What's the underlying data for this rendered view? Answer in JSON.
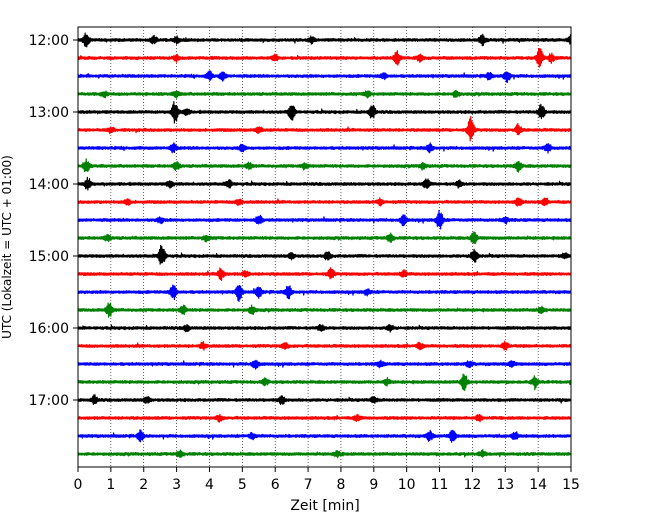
{
  "chart_data": {
    "type": "line",
    "title": "",
    "xlabel": "Zeit  [min]",
    "ylabel": "UTC (Lokalzeit = UTC + 01:00)",
    "xlim": [
      0,
      15
    ],
    "x_ticks": [
      "0",
      "1",
      "2",
      "3",
      "4",
      "5",
      "6",
      "7",
      "8",
      "9",
      "10",
      "11",
      "12",
      "13",
      "14",
      "15"
    ],
    "y_tick_labels": [
      "12:00",
      "13:00",
      "14:00",
      "15:00",
      "16:00",
      "17:00"
    ],
    "grid": "vertical dotted",
    "trace_colors": [
      "#000000",
      "#ff0000",
      "#0000ff",
      "#008000"
    ],
    "traces": [
      {
        "start": "12:00",
        "bursts": [
          [
            0.25,
            7
          ],
          [
            2.3,
            4
          ],
          [
            3.0,
            3
          ],
          [
            7.1,
            3
          ],
          [
            12.3,
            5
          ],
          [
            15.0,
            4
          ]
        ]
      },
      {
        "start": "12:15",
        "bursts": [
          [
            3.0,
            3
          ],
          [
            6.0,
            3
          ],
          [
            9.7,
            7
          ],
          [
            10.4,
            3
          ],
          [
            14.05,
            10
          ],
          [
            14.4,
            4
          ]
        ]
      },
      {
        "start": "12:30",
        "bursts": [
          [
            4.0,
            4
          ],
          [
            4.4,
            4
          ],
          [
            9.3,
            3
          ],
          [
            13.05,
            6
          ],
          [
            12.5,
            3
          ]
        ]
      },
      {
        "start": "12:45",
        "bursts": [
          [
            0.8,
            3
          ],
          [
            3.0,
            3
          ],
          [
            8.8,
            3
          ],
          [
            11.5,
            3
          ]
        ]
      },
      {
        "start": "13:00",
        "bursts": [
          [
            2.95,
            11
          ],
          [
            6.5,
            9
          ],
          [
            8.95,
            7
          ],
          [
            14.1,
            8
          ],
          [
            3.3,
            3
          ]
        ]
      },
      {
        "start": "13:15",
        "bursts": [
          [
            1.0,
            3
          ],
          [
            5.5,
            3
          ],
          [
            11.95,
            12
          ],
          [
            13.4,
            5
          ]
        ]
      },
      {
        "start": "13:30",
        "bursts": [
          [
            2.9,
            4
          ],
          [
            5.0,
            3
          ],
          [
            10.7,
            4
          ],
          [
            14.3,
            4
          ]
        ]
      },
      {
        "start": "13:45",
        "bursts": [
          [
            0.25,
            6
          ],
          [
            3.0,
            4
          ],
          [
            5.2,
            3
          ],
          [
            6.9,
            3
          ],
          [
            10.5,
            3
          ],
          [
            13.4,
            5
          ]
        ]
      },
      {
        "start": "14:00",
        "bursts": [
          [
            0.3,
            6
          ],
          [
            2.8,
            3
          ],
          [
            4.6,
            4
          ],
          [
            10.6,
            5
          ],
          [
            11.6,
            3
          ]
        ]
      },
      {
        "start": "14:15",
        "bursts": [
          [
            1.5,
            3
          ],
          [
            4.9,
            3
          ],
          [
            9.2,
            3
          ],
          [
            13.4,
            4
          ],
          [
            14.2,
            3
          ]
        ]
      },
      {
        "start": "14:30",
        "bursts": [
          [
            2.5,
            3
          ],
          [
            5.5,
            5
          ],
          [
            9.9,
            5
          ],
          [
            11.0,
            10
          ],
          [
            13.0,
            3
          ]
        ]
      },
      {
        "start": "14:45",
        "bursts": [
          [
            0.9,
            3
          ],
          [
            3.9,
            3
          ],
          [
            9.5,
            4
          ],
          [
            12.05,
            6
          ]
        ]
      },
      {
        "start": "15:00",
        "bursts": [
          [
            2.55,
            12
          ],
          [
            6.5,
            3
          ],
          [
            7.6,
            4
          ],
          [
            12.05,
            7
          ],
          [
            14.8,
            3
          ]
        ]
      },
      {
        "start": "15:15",
        "bursts": [
          [
            4.35,
            6
          ],
          [
            7.7,
            5
          ],
          [
            5.1,
            3
          ],
          [
            9.9,
            3
          ]
        ]
      },
      {
        "start": "15:30",
        "bursts": [
          [
            2.9,
            8
          ],
          [
            4.9,
            8
          ],
          [
            5.5,
            5
          ],
          [
            6.4,
            7
          ],
          [
            8.8,
            3
          ]
        ]
      },
      {
        "start": "15:45",
        "bursts": [
          [
            0.95,
            7
          ],
          [
            3.2,
            4
          ],
          [
            5.3,
            4
          ],
          [
            14.1,
            3
          ]
        ]
      },
      {
        "start": "16:00",
        "bursts": [
          [
            3.3,
            3
          ],
          [
            7.4,
            3
          ],
          [
            9.5,
            3
          ]
        ]
      },
      {
        "start": "16:15",
        "bursts": [
          [
            3.8,
            3
          ],
          [
            6.3,
            3
          ],
          [
            10.4,
            3
          ],
          [
            13.0,
            4
          ]
        ]
      },
      {
        "start": "16:30",
        "bursts": [
          [
            5.4,
            5
          ],
          [
            9.2,
            3
          ],
          [
            11.9,
            3
          ],
          [
            13.2,
            3
          ]
        ]
      },
      {
        "start": "16:45",
        "bursts": [
          [
            5.7,
            3
          ],
          [
            9.4,
            3
          ],
          [
            11.75,
            8
          ],
          [
            13.9,
            5
          ]
        ]
      },
      {
        "start": "17:00",
        "bursts": [
          [
            0.5,
            4
          ],
          [
            2.1,
            3
          ],
          [
            6.2,
            4
          ],
          [
            9.0,
            3
          ]
        ]
      },
      {
        "start": "17:15",
        "bursts": [
          [
            4.3,
            3
          ],
          [
            8.5,
            3
          ],
          [
            12.2,
            3
          ]
        ]
      },
      {
        "start": "17:30",
        "bursts": [
          [
            1.9,
            5
          ],
          [
            5.3,
            3
          ],
          [
            10.7,
            5
          ],
          [
            11.4,
            6
          ],
          [
            13.3,
            4
          ]
        ]
      },
      {
        "start": "17:45",
        "bursts": [
          [
            3.1,
            3
          ],
          [
            7.9,
            3
          ],
          [
            12.3,
            3
          ]
        ]
      }
    ]
  }
}
